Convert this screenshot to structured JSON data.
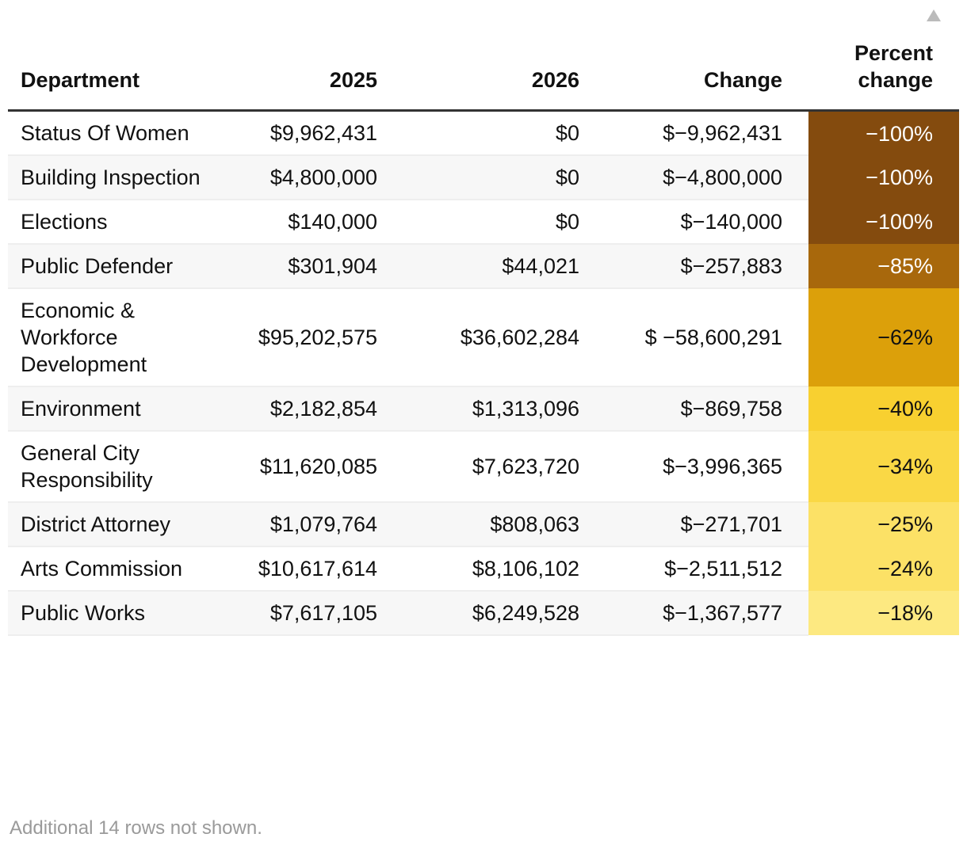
{
  "table": {
    "header": [
      "Department",
      "2025",
      "2026",
      "Change",
      "Percent change"
    ],
    "rows": [
      [
        "Status Of Women",
        "$9,962,431",
        "$0",
        "$−9,962,431",
        "−100%"
      ],
      [
        "Building Inspection",
        "$4,800,000",
        "$0",
        "$−4,800,000",
        "−100%"
      ],
      [
        "Elections",
        "$140,000",
        "$0",
        "$−140,000",
        "−100%"
      ],
      [
        "Public Defender",
        "$301,904",
        "$44,021",
        "$−257,883",
        "−85%"
      ],
      [
        "Economic & Workforce Development",
        "$95,202,575",
        "$36,602,284",
        "$ −58,600,291",
        "−62%"
      ],
      [
        "Environment",
        "$2,182,854",
        "$1,313,096",
        "$−869,758",
        "−40%"
      ],
      [
        "General City Responsibility",
        "$11,620,085",
        "$7,623,720",
        "$−3,996,365",
        "−34%"
      ],
      [
        "District Attorney",
        "$1,079,764",
        "$808,063",
        "$−271,701",
        "−25%"
      ],
      [
        "Arts Commission",
        "$10,617,614",
        "$8,106,102",
        "$−2,511,512",
        "−24%"
      ],
      [
        "Public Works",
        "$7,617,105",
        "$6,249,528",
        "$−1,367,577",
        "−18%"
      ]
    ],
    "percent_colors": [
      "#844b0e",
      "#844b0e",
      "#844b0e",
      "#a8680c",
      "#dca00a",
      "#f8d030",
      "#fad845",
      "#fce166",
      "#fce166",
      "#fde981"
    ],
    "footnote": "Additional 14 rows not shown."
  }
}
